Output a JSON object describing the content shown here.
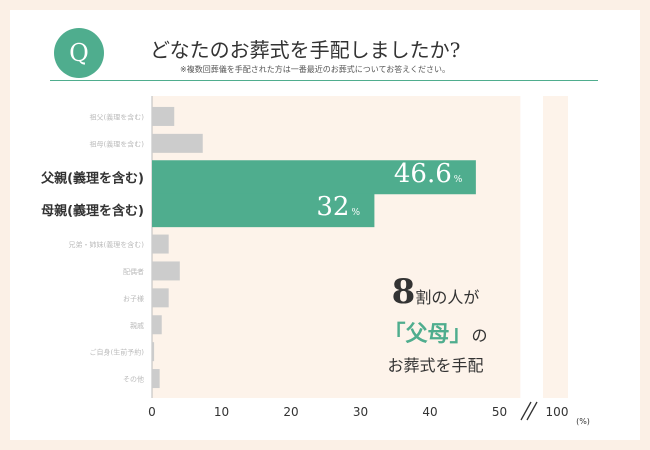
{
  "header": {
    "badge": "Q",
    "title": "どなたのお葬式を手配しましたか?",
    "note": "※複数回葬儀を手配された方は一番最近のお葬式についてお答えください。"
  },
  "callout": {
    "number": "8",
    "line1_suffix": "割の人が",
    "highlight": "「父母」",
    "line2_suffix": "の",
    "line3": "お葬式を手配"
  },
  "colors": {
    "accent": "#4fad8e",
    "bar_gray": "#cccccc",
    "panel": "#fdf3ea"
  },
  "chart_data": {
    "type": "bar",
    "orientation": "horizontal",
    "categories": [
      "祖父(義理を含む)",
      "祖母(義理を含む)",
      "父親(義理を含む)",
      "母親(義理を含む)",
      "兄弟・姉妹(義理を含む)",
      "配偶者",
      "お子様",
      "親戚",
      "ご自身(生前予約)",
      "その他"
    ],
    "values": [
      3.2,
      7.3,
      46.6,
      32,
      2.4,
      4.0,
      2.4,
      1.4,
      0.3,
      1.1
    ],
    "highlighted": [
      false,
      false,
      true,
      true,
      false,
      false,
      false,
      false,
      false,
      false
    ],
    "value_labels": {
      "2": "46.6",
      "3": "32"
    },
    "value_unit": "%",
    "x_ticks": [
      0,
      10,
      20,
      30,
      40,
      50
    ],
    "x_break_tick": 100,
    "xunit": "(%)",
    "xlim": [
      0,
      100
    ]
  }
}
